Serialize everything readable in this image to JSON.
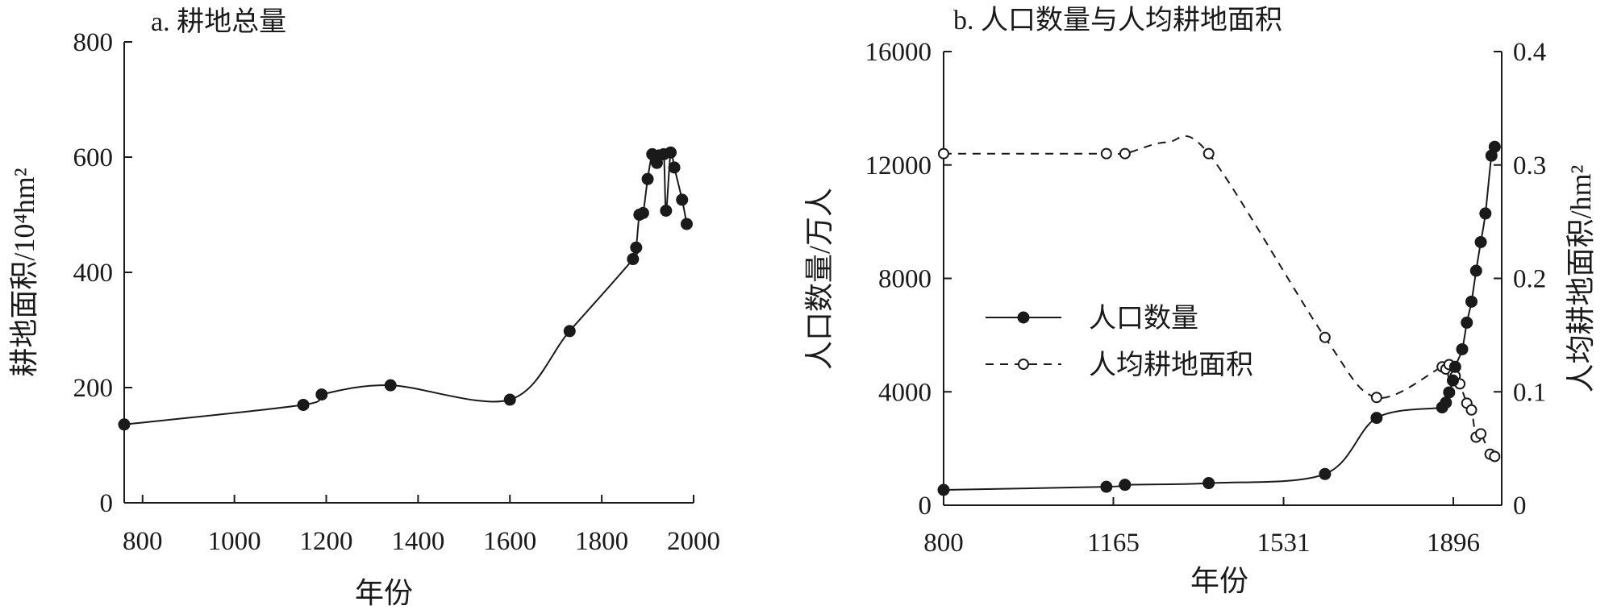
{
  "chart_data": [
    {
      "type": "line",
      "title": "a. 耕地总量",
      "xlabel": "年份",
      "ylabel": "耕地面积/10⁴hm²",
      "xlim": [
        760,
        2000
      ],
      "ylim": [
        0,
        800
      ],
      "xticks": [
        800,
        1000,
        1200,
        1400,
        1600,
        1800,
        2000
      ],
      "yticks": [
        0,
        200,
        400,
        600,
        800
      ],
      "grid": false,
      "series": [
        {
          "marker": "filled-circle",
          "x": [
            760,
            1150,
            1190,
            1340,
            1600,
            1730,
            1868,
            1875,
            1882,
            1890,
            1900,
            1910,
            1920,
            1925,
            1935,
            1940,
            1950,
            1958,
            1975,
            1985
          ],
          "y": [
            136,
            170,
            188,
            204,
            179,
            298,
            423,
            443,
            500,
            503,
            562,
            605,
            590,
            603,
            605,
            507,
            608,
            582,
            526,
            484
          ]
        }
      ]
    },
    {
      "type": "line",
      "title": "b. 人口数量与人均耕地面积",
      "xlabel": "年份",
      "ylabel": "人口数量/万人",
      "y2label": "人均耕地面积/hm²",
      "xlim": [
        800,
        2000
      ],
      "ylim": [
        0,
        16000
      ],
      "y2lim": [
        0,
        0.4
      ],
      "xticks": [
        800,
        1165,
        1531,
        1896
      ],
      "yticks": [
        0,
        4000,
        8000,
        12000,
        16000
      ],
      "y2ticks": [
        "0",
        "0.1",
        "0.2",
        "0.3",
        "0.4"
      ],
      "y2tick_values": [
        0,
        0.1,
        0.2,
        0.3,
        0.4
      ],
      "grid": false,
      "legend_position": "middle-left",
      "series": [
        {
          "name": "人口数量",
          "axis": "left",
          "style": "solid",
          "marker": "filled-circle",
          "x": [
            800,
            1150,
            1190,
            1370,
            1620,
            1731,
            1872,
            1880,
            1887,
            1895,
            1900,
            1915,
            1925,
            1935,
            1945,
            1955,
            1965,
            1978,
            1985
          ],
          "y": [
            540,
            650,
            720,
            780,
            1100,
            3080,
            3450,
            3620,
            3980,
            4400,
            4880,
            5500,
            6440,
            7180,
            8270,
            9280,
            10290,
            12330,
            12640
          ]
        },
        {
          "name": "人均耕地面积",
          "axis": "right",
          "style": "dashed",
          "marker": "open-circle",
          "x": [
            800,
            1150,
            1190,
            1370,
            1620,
            1731,
            1872,
            1880,
            1887,
            1895,
            1900,
            1910,
            1925,
            1935,
            1945,
            1955,
            1975,
            1985
          ],
          "y": [
            0.31,
            0.31,
            0.31,
            0.31,
            0.148,
            0.095,
            0.122,
            0.12,
            0.124,
            0.115,
            0.114,
            0.107,
            0.09,
            0.084,
            0.06,
            0.063,
            0.045,
            0.043
          ]
        }
      ]
    }
  ]
}
